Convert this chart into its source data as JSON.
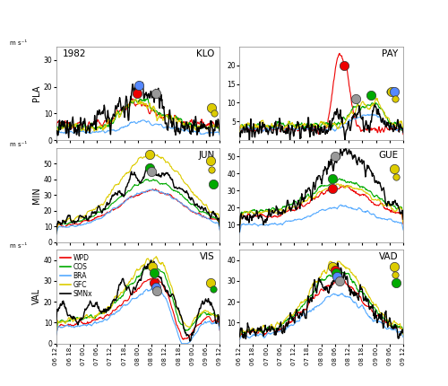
{
  "title_year": "1982",
  "panels": [
    {
      "label": "KLO",
      "ylabel": "PLA",
      "row": 0,
      "col": 0,
      "ylim": [
        0,
        35
      ],
      "yticks": [
        0,
        10,
        20,
        30
      ]
    },
    {
      "label": "PAY",
      "ylabel": "",
      "row": 0,
      "col": 1,
      "ylim": [
        0,
        25
      ],
      "yticks": [
        5,
        10,
        15,
        20
      ]
    },
    {
      "label": "JUN",
      "ylabel": "MIN",
      "row": 1,
      "col": 0,
      "ylim": [
        0,
        60
      ],
      "yticks": [
        0,
        10,
        20,
        30,
        40,
        50
      ]
    },
    {
      "label": "GUE",
      "ylabel": "",
      "row": 1,
      "col": 1,
      "ylim": [
        0,
        55
      ],
      "yticks": [
        10,
        20,
        30,
        40,
        50
      ]
    },
    {
      "label": "VIS",
      "ylabel": "VAL",
      "row": 2,
      "col": 0,
      "ylim": [
        0,
        45
      ],
      "yticks": [
        0,
        10,
        20,
        30,
        40
      ]
    },
    {
      "label": "VAD",
      "ylabel": "",
      "row": 2,
      "col": 1,
      "ylim": [
        0,
        45
      ],
      "yticks": [
        10,
        20,
        30,
        40
      ]
    }
  ],
  "colors": {
    "WPD": "#EE0000",
    "COS": "#00AA00",
    "BRA": "#55AAFF",
    "GFC": "#DDCC00",
    "SMNx": "#000000"
  },
  "line_order": [
    "WPD",
    "COS",
    "BRA",
    "GFC",
    "SMNx"
  ],
  "xtick_labels": [
    "06 12",
    "06 18",
    "07 00",
    "07 06",
    "07 12",
    "07 18",
    "08 00",
    "08 06",
    "08 12",
    "08 18",
    "09 00",
    "09 06",
    "09 12"
  ],
  "background_color": "#FFFFFF",
  "panel_bg": "#FFFFFF",
  "unit_label": "m s⁻¹"
}
